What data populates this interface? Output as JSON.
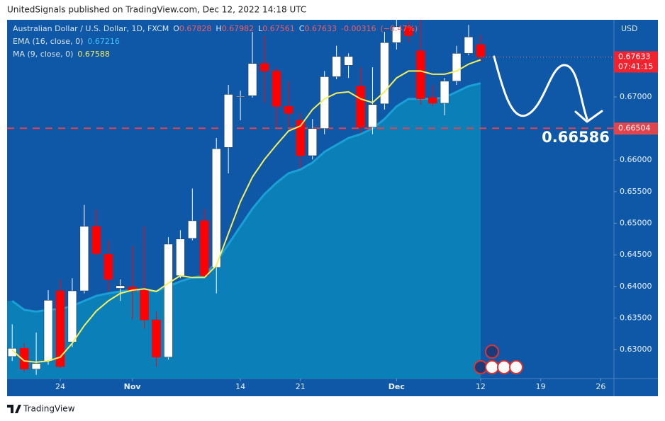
{
  "page": {
    "header": "UnitedSignals published on TradingView.com, Dec 12, 2022 14:18 UTC",
    "footer": "TradingView"
  },
  "chart_data": {
    "type": "candlestick",
    "title": "Australian Dollar / U.S. Dollar, 1D, FXCM",
    "currency": "USD",
    "ohlc_keys": [
      "O",
      "H",
      "L",
      "C"
    ],
    "change": -0.00316,
    "change_percent_label": "(−0.47%)",
    "candles": {
      "up_color": "#ffffff",
      "down_color": "#ff0000",
      "open": [
        0.6289,
        0.6302,
        0.6269,
        0.6282,
        0.6393,
        0.6312,
        0.6393,
        0.6495,
        0.6451,
        0.6397,
        0.6399,
        0.6394,
        0.6347,
        0.6288,
        0.6417,
        0.6476,
        0.6504,
        0.643,
        0.662,
        0.67,
        0.6702,
        0.6753,
        0.6741,
        0.6685,
        0.6663,
        0.6607,
        0.665,
        0.6732,
        0.675,
        0.6717,
        0.6652,
        0.6689,
        0.6786,
        0.6811,
        0.6773,
        0.6699,
        0.669,
        0.6725,
        0.6769,
        0.67828
      ],
      "high": [
        0.634,
        0.631,
        0.6327,
        0.6394,
        0.6411,
        0.6413,
        0.6529,
        0.6522,
        0.6473,
        0.6411,
        0.6464,
        0.6495,
        0.636,
        0.6478,
        0.6489,
        0.6555,
        0.6523,
        0.6635,
        0.6719,
        0.671,
        0.6803,
        0.6797,
        0.6747,
        0.6725,
        0.6674,
        0.6665,
        0.6741,
        0.6781,
        0.6769,
        0.6747,
        0.6747,
        0.6803,
        0.6822,
        0.682,
        0.6822,
        0.6719,
        0.673,
        0.6781,
        0.6814,
        0.67982
      ],
      "low": [
        0.6282,
        0.6265,
        0.626,
        0.6276,
        0.6271,
        0.6304,
        0.6389,
        0.6448,
        0.6392,
        0.6377,
        0.6348,
        0.6333,
        0.6273,
        0.6284,
        0.6413,
        0.6473,
        0.6413,
        0.6389,
        0.6579,
        0.6663,
        0.6699,
        0.6691,
        0.6652,
        0.6652,
        0.6587,
        0.6601,
        0.6641,
        0.6728,
        0.673,
        0.6643,
        0.6641,
        0.668,
        0.6775,
        0.6786,
        0.6688,
        0.6685,
        0.6671,
        0.6719,
        0.6766,
        0.67561
      ],
      "close": [
        0.6302,
        0.6269,
        0.6278,
        0.6378,
        0.6273,
        0.6393,
        0.6495,
        0.6452,
        0.6411,
        0.6401,
        0.6393,
        0.6347,
        0.6288,
        0.6467,
        0.6475,
        0.6504,
        0.6417,
        0.6618,
        0.6704,
        0.6701,
        0.6753,
        0.6741,
        0.6685,
        0.6674,
        0.6607,
        0.665,
        0.6732,
        0.6764,
        0.6764,
        0.6652,
        0.6688,
        0.6786,
        0.6811,
        0.6797,
        0.6697,
        0.669,
        0.6725,
        0.6769,
        0.6795,
        0.67633
      ]
    },
    "series": [
      {
        "name": "EMA (16, close, 0)",
        "color": "#1a9fd6",
        "area_color": "#0b84b8",
        "values": [
          0.6377,
          0.6363,
          0.636,
          0.6363,
          0.6364,
          0.6369,
          0.6377,
          0.6385,
          0.6389,
          0.6392,
          0.6394,
          0.6394,
          0.6392,
          0.64,
          0.6408,
          0.6414,
          0.6417,
          0.6439,
          0.6467,
          0.6495,
          0.6523,
          0.6546,
          0.6564,
          0.6579,
          0.6585,
          0.6596,
          0.6613,
          0.6624,
          0.6635,
          0.6641,
          0.665,
          0.6665,
          0.6685,
          0.6697,
          0.6697,
          0.6697,
          0.6699,
          0.6708,
          0.6717,
          0.67216
        ]
      },
      {
        "name": "MA (9, close, 0)",
        "color": "#f5ef5a",
        "values": [
          0.6299,
          0.6282,
          0.628,
          0.6282,
          0.6288,
          0.631,
          0.6338,
          0.6361,
          0.6377,
          0.6389,
          0.6394,
          0.6396,
          0.6392,
          0.6405,
          0.6417,
          0.6414,
          0.6414,
          0.6433,
          0.6484,
          0.6534,
          0.6573,
          0.6601,
          0.6624,
          0.6646,
          0.6654,
          0.668,
          0.6697,
          0.6706,
          0.6708,
          0.6697,
          0.6691,
          0.6708,
          0.673,
          0.6741,
          0.6741,
          0.6736,
          0.6736,
          0.6741,
          0.6752,
          0.67588
        ]
      }
    ],
    "level": 0.66504,
    "level_color": "#e0444c",
    "target": 0.66586,
    "countdown": "07:41:15",
    "xlim": [
      -0.425,
      50.1
    ],
    "xticks": [
      {
        "value": 4,
        "label": "24"
      },
      {
        "value": 10,
        "label": "Nov"
      },
      {
        "value": 19,
        "label": "14"
      },
      {
        "value": 24,
        "label": "21"
      },
      {
        "value": 32,
        "label": "Dec"
      },
      {
        "value": 39,
        "label": "12"
      },
      {
        "value": 44,
        "label": "19"
      },
      {
        "value": 49,
        "label": "26"
      }
    ],
    "ylim": [
      0.62541,
      0.68221
    ],
    "yticks": [
      {
        "value": 0.63,
        "label": "0.63000"
      },
      {
        "value": 0.635,
        "label": "0.63500"
      },
      {
        "value": 0.64,
        "label": "0.64000"
      },
      {
        "value": 0.645,
        "label": "0.64500"
      },
      {
        "value": 0.65,
        "label": "0.65000"
      },
      {
        "value": 0.655,
        "label": "0.65500"
      },
      {
        "value": 0.66,
        "label": "0.66000"
      },
      {
        "value": 0.67,
        "label": "0.67000"
      }
    ],
    "grid": false
  }
}
